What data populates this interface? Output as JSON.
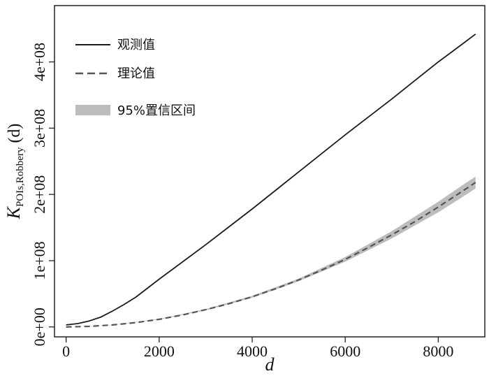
{
  "chart_data": {
    "type": "line",
    "xlabel": "d",
    "ylabel": {
      "main": "K",
      "subscript": "POIs,Robbery",
      "suffix": " (d)"
    },
    "xlim": [
      -250,
      9000
    ],
    "ylim": [
      -15000000,
      485000000
    ],
    "x_ticks": [
      0,
      2000,
      4000,
      6000,
      8000
    ],
    "x_tick_labels": [
      "0",
      "2000",
      "4000",
      "6000",
      "8000"
    ],
    "y_ticks": [
      0,
      100000000,
      200000000,
      300000000,
      400000000
    ],
    "y_tick_labels": [
      "0e+00",
      "1e+08",
      "2e+08",
      "3e+08",
      "4e+08"
    ],
    "grid": false,
    "legend_position": "top-left",
    "legend": [
      {
        "label": "观测值",
        "style": "solid"
      },
      {
        "label": "理论值",
        "style": "dashed"
      },
      {
        "label": "95%置信区间",
        "style": "band"
      }
    ],
    "series": [
      {
        "name": "观测值",
        "style": "solid",
        "color": "#1a1a1a",
        "x": [
          0,
          250,
          500,
          750,
          1000,
          1250,
          1500,
          2000,
          2500,
          3000,
          3500,
          4000,
          4500,
          5000,
          5500,
          6000,
          6500,
          7000,
          7500,
          8000,
          8500,
          8800
        ],
        "y": [
          3000000,
          5000000,
          9000000,
          15000000,
          24000000,
          34000000,
          45000000,
          72000000,
          98000000,
          124000000,
          151000000,
          178000000,
          206000000,
          234000000,
          262000000,
          290000000,
          317000000,
          344000000,
          372000000,
          400000000,
          426000000,
          442000000
        ]
      },
      {
        "name": "理论值",
        "style": "dashed",
        "color": "#555555",
        "x": [
          0,
          500,
          1000,
          1500,
          2000,
          2500,
          3000,
          3500,
          4000,
          4500,
          5000,
          5500,
          6000,
          6500,
          7000,
          7500,
          8000,
          8500,
          8800
        ],
        "y": [
          0,
          800000,
          3000000,
          6500000,
          11500000,
          18000000,
          26000000,
          35000000,
          45500000,
          57500000,
          71000000,
          86000000,
          102000000,
          120000000,
          139000000,
          159000000,
          181000000,
          204000000,
          218000000
        ]
      }
    ],
    "band": {
      "name": "95%置信区间",
      "color": "#bdbdbd",
      "x": [
        0,
        1000,
        2000,
        3000,
        4000,
        5000,
        6000,
        7000,
        8000,
        8500,
        8800
      ],
      "lower": [
        0,
        2800000,
        11000000,
        25000000,
        44000000,
        69000000,
        98500000,
        133500000,
        173000000,
        195000000,
        209000000
      ],
      "upper": [
        0,
        3200000,
        12000000,
        27000000,
        47000000,
        73000000,
        105500000,
        144500000,
        189000000,
        213000000,
        227000000
      ]
    }
  }
}
